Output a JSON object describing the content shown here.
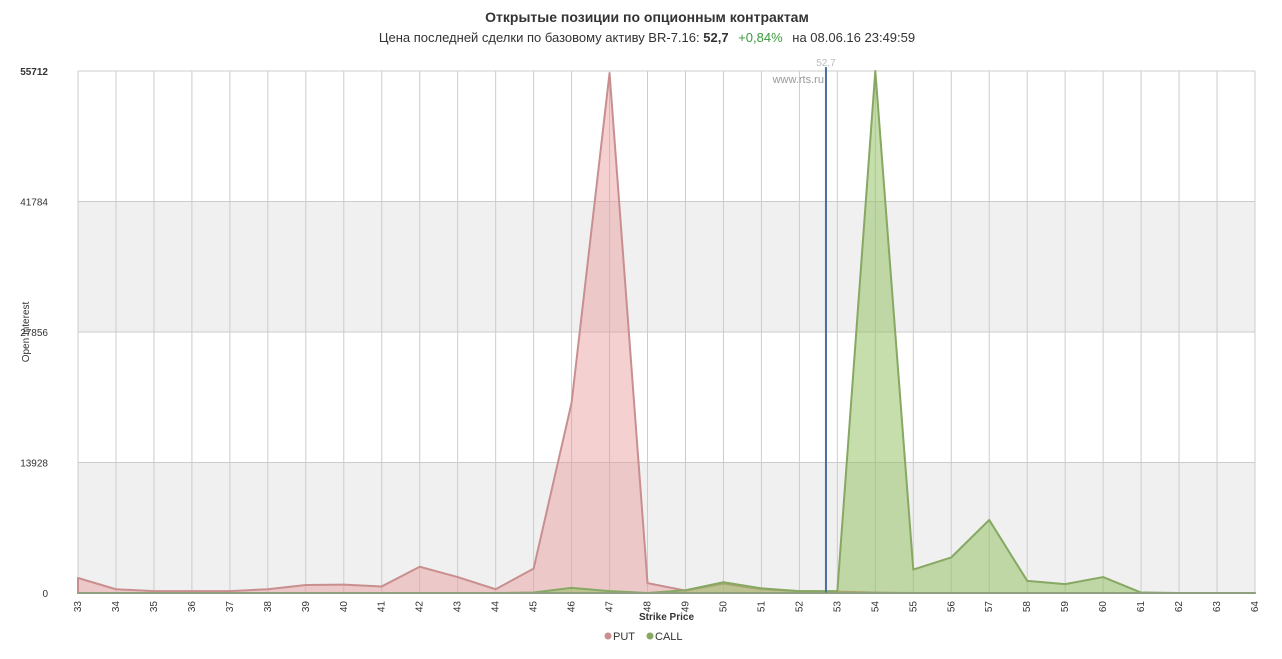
{
  "chart_data": {
    "type": "area",
    "title": "Открытые позиции по опционным контрактам",
    "subtitle": [
      "Цена последней сделки по базовому активу BR-7.16:",
      "52,7",
      "+0,84%",
      "на 08.06.16 23:49:59"
    ],
    "watermark": "www.rts.ru",
    "x_label": "Strike Price",
    "y_label": "Open Interest",
    "x": [
      33,
      34,
      35,
      36,
      37,
      38,
      39,
      40,
      41,
      42,
      43,
      44,
      45,
      46,
      47,
      48,
      49,
      50,
      51,
      52,
      53,
      54,
      55,
      56,
      57,
      58,
      59,
      60,
      61,
      62,
      63,
      64
    ],
    "xlim": [
      33,
      64
    ],
    "xticks": [
      33,
      34,
      35,
      36,
      37,
      38,
      39,
      40,
      41,
      42,
      43,
      44,
      45,
      46,
      47,
      48,
      49,
      50,
      51,
      52,
      53,
      54,
      55,
      56,
      57,
      58,
      59,
      60,
      61,
      62,
      63,
      64
    ],
    "ylim": [
      0,
      55712
    ],
    "yticks": [
      0,
      13928,
      27856,
      41784,
      55712
    ],
    "price_line": {
      "value": 52.7,
      "label": "52,7",
      "color": "#4a6f9c"
    },
    "grid": true,
    "series": [
      {
        "name": "PUT",
        "color": "#c98f8f",
        "fill": "rgba(232,150,150,0.45)",
        "values": [
          1600,
          400,
          200,
          200,
          200,
          400,
          850,
          900,
          700,
          2800,
          1700,
          400,
          2600,
          20300,
          55500,
          1050,
          250,
          1000,
          400,
          200,
          150,
          50,
          0,
          0,
          0,
          0,
          0,
          0,
          0,
          0,
          0,
          0
        ]
      },
      {
        "name": "CALL",
        "color": "#86a862",
        "fill": "rgba(140,190,90,0.5)",
        "values": [
          0,
          0,
          0,
          0,
          0,
          0,
          0,
          0,
          0,
          0,
          0,
          0,
          50,
          550,
          200,
          0,
          300,
          1150,
          500,
          200,
          200,
          55712,
          2500,
          3800,
          7800,
          1300,
          950,
          1700,
          50,
          0,
          0,
          0
        ]
      }
    ]
  }
}
